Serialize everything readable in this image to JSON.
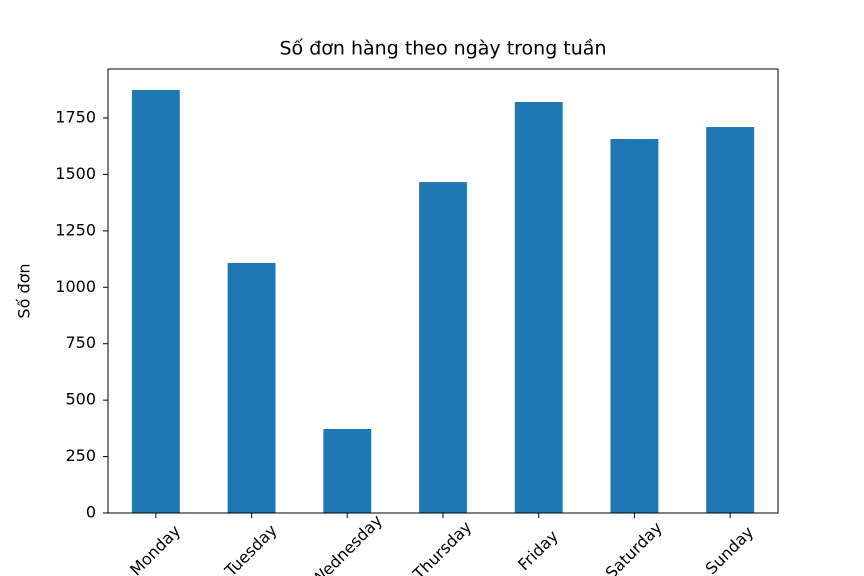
{
  "chart_data": {
    "type": "bar",
    "title": "Số đơn hàng theo ngày trong tuần",
    "y_label": "Số đơn",
    "categories": [
      "Monday",
      "Tuesday",
      "Wednesday",
      "Thursday",
      "Friday",
      "Saturday",
      "Sunday"
    ],
    "values": [
      1874,
      1108,
      372,
      1466,
      1821,
      1657,
      1710
    ],
    "color": "#1f77b4",
    "ylim": [
      0,
      1967
    ],
    "yticks": [
      0,
      250,
      500,
      750,
      1000,
      1250,
      1500,
      1750
    ],
    "grid": false
  }
}
